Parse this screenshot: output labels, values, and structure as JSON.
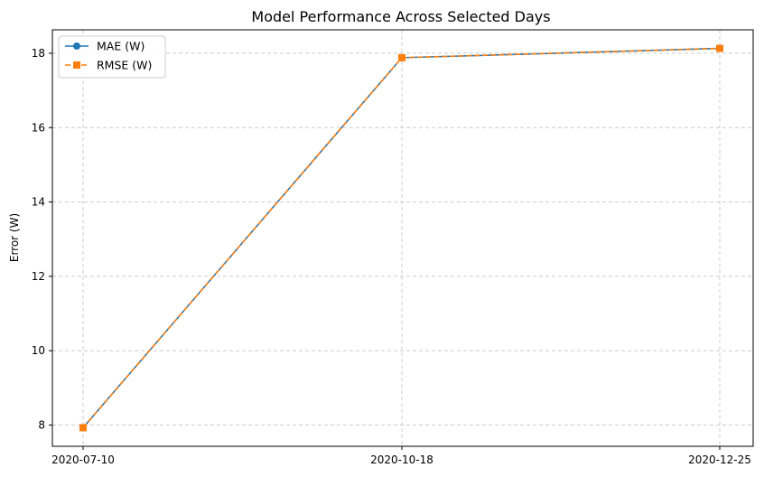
{
  "chart_data": {
    "type": "line",
    "title": "Model Performance Across Selected Days",
    "xlabel": "",
    "ylabel": "Error (W)",
    "categories": [
      "2020-07-10",
      "2020-10-18",
      "2020-12-25"
    ],
    "series": [
      {
        "name": "MAE (W)",
        "values": [
          7.93,
          17.88,
          18.13
        ],
        "color": "#1f77b4",
        "marker": "circle",
        "line_style": "solid"
      },
      {
        "name": "RMSE (W)",
        "values": [
          7.93,
          17.88,
          18.13
        ],
        "color": "#ff7f0e",
        "marker": "square",
        "line_style": "dashed"
      }
    ],
    "y_ticks": [
      8,
      10,
      12,
      14,
      16,
      18
    ],
    "ylim": [
      7.43,
      18.63
    ],
    "grid": true,
    "legend_position": "top-left"
  }
}
